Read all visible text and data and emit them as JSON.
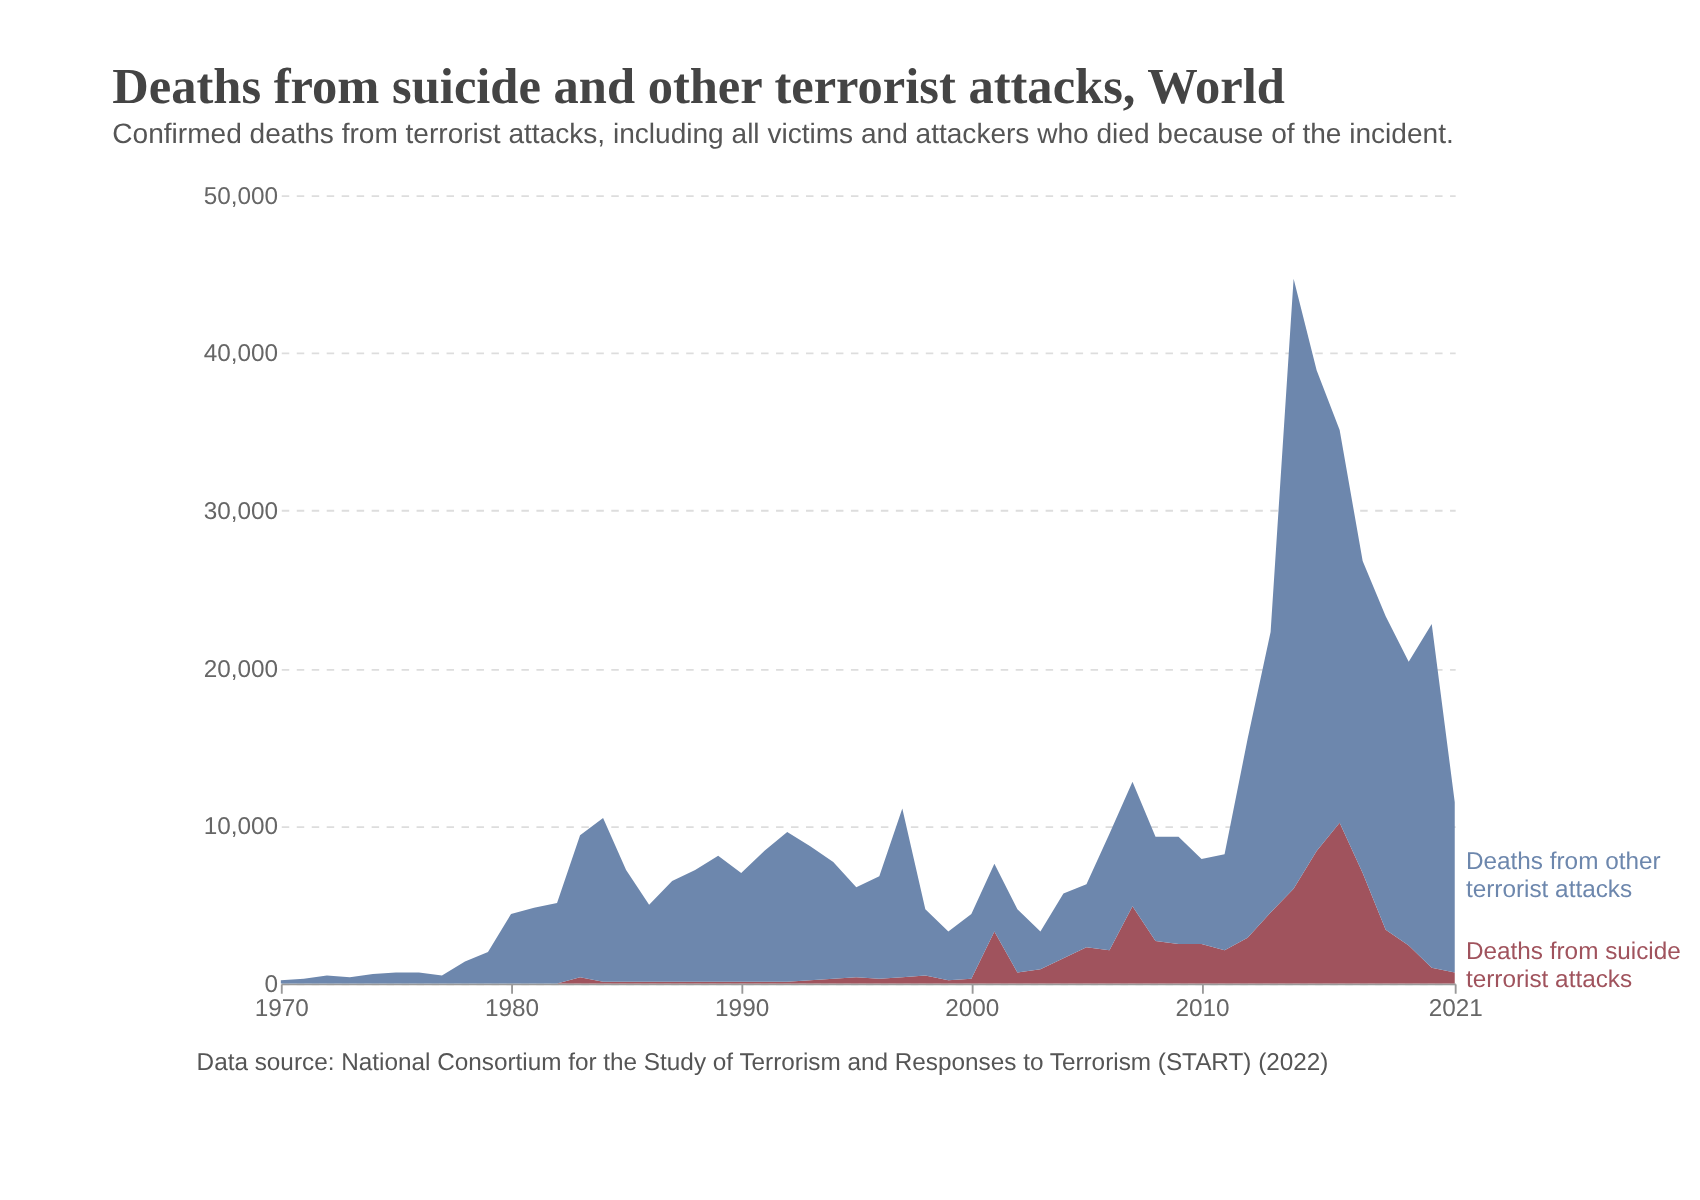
{
  "chart_data": {
    "type": "area",
    "stacked": true,
    "title": "Deaths from suicide and other terrorist attacks, World",
    "subtitle": "Confirmed deaths from terrorist attacks, including all victims and attackers who died because of the incident.",
    "x": [
      1970,
      1971,
      1972,
      1973,
      1974,
      1975,
      1976,
      1977,
      1978,
      1979,
      1980,
      1981,
      1982,
      1983,
      1984,
      1985,
      1986,
      1987,
      1988,
      1989,
      1990,
      1991,
      1992,
      1993,
      1994,
      1995,
      1996,
      1997,
      1998,
      1999,
      2000,
      2001,
      2002,
      2003,
      2004,
      2005,
      2006,
      2007,
      2008,
      2009,
      2010,
      2011,
      2012,
      2013,
      2014,
      2015,
      2016,
      2017,
      2018,
      2019,
      2020,
      2021
    ],
    "series": [
      {
        "name": "Deaths from suicide terrorist attacks",
        "color": "#a0535d",
        "values": [
          0,
          0,
          0,
          0,
          0,
          0,
          0,
          0,
          0,
          0,
          0,
          0,
          0,
          400,
          100,
          100,
          100,
          100,
          100,
          100,
          100,
          100,
          100,
          200,
          300,
          400,
          300,
          400,
          500,
          200,
          300,
          3300,
          700,
          900,
          1600,
          2300,
          2100,
          4900,
          2700,
          2500,
          2500,
          2100,
          2900,
          4500,
          6000,
          8400,
          10200,
          7000,
          3400,
          2400,
          1000,
          700
        ]
      },
      {
        "name": "Deaths from other terrorist attacks",
        "color": "#6d87ad",
        "values": [
          200,
          300,
          500,
          400,
          600,
          700,
          700,
          500,
          1400,
          2000,
          4400,
          4800,
          5100,
          9000,
          10400,
          7100,
          4900,
          6400,
          7100,
          8000,
          6900,
          8300,
          9500,
          8500,
          7400,
          5700,
          6500,
          10700,
          4200,
          3100,
          4100,
          4300,
          4000,
          2400,
          4100,
          4000,
          7400,
          7900,
          6600,
          6800,
          5400,
          6100,
          12600,
          17800,
          38700,
          30500,
          24900,
          19800,
          19900,
          18000,
          21800,
          10800
        ]
      }
    ],
    "xlim": [
      1970,
      2021
    ],
    "xticks": [
      1970,
      1980,
      1990,
      2000,
      2010,
      2021
    ],
    "ylim": [
      0,
      50000
    ],
    "yticks": [
      0,
      {
        "value": 10000,
        "label": "10,000"
      },
      {
        "value": 20000,
        "label": "20,000"
      },
      {
        "value": 30000,
        "label": "30,000"
      },
      {
        "value": 40000,
        "label": "40,000"
      },
      {
        "value": 50000,
        "label": "50,000"
      }
    ],
    "grid": "y",
    "legend": false,
    "annotations": [
      "Data source: National Consortium for the Study of Terrorism and Responses to Terrorism (START) (2022)"
    ]
  }
}
